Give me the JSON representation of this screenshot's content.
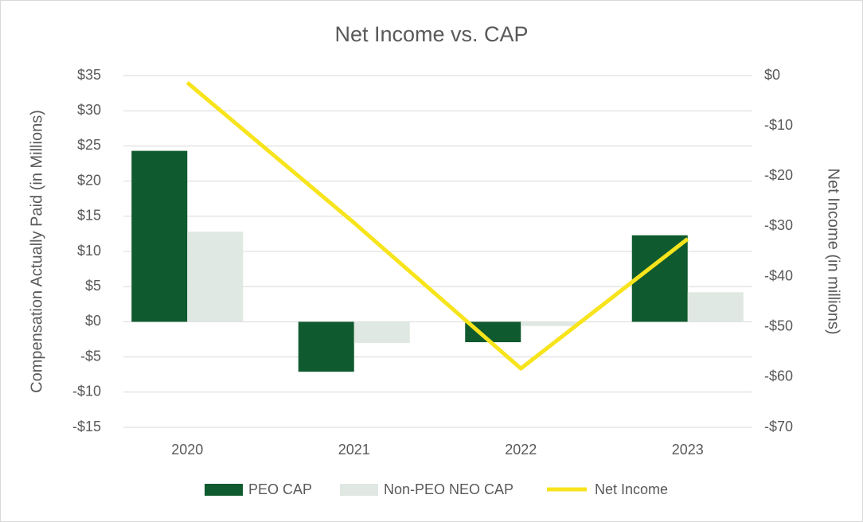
{
  "chart_data": {
    "type": "bar-line",
    "title": "Net Income vs. CAP",
    "y_label": "Compensation Actually Paid (in Millions)",
    "y2_label": "Net Income (in millions)",
    "categories": [
      "2020",
      "2021",
      "2022",
      "2023"
    ],
    "series": [
      {
        "name": "PEO CAP",
        "type": "bar",
        "color": "#0f5a2e",
        "values": [
          24.3,
          -7.1,
          -2.9,
          12.3
        ]
      },
      {
        "name": "Non-PEO NEO CAP",
        "type": "bar",
        "color": "#dfe8e2",
        "values": [
          12.8,
          -3.0,
          -0.6,
          4.2
        ]
      },
      {
        "name": "Net Income",
        "type": "line",
        "axis": "y2",
        "color": "#f7e41c",
        "values": [
          -1.4,
          -29.3,
          -58.3,
          -32.5
        ]
      }
    ],
    "ylim": [
      -15,
      35
    ],
    "yticks": [
      {
        "value": -15,
        "label": "-$15"
      },
      {
        "value": -10,
        "label": "-$10"
      },
      {
        "value": -5,
        "label": "-$5"
      },
      {
        "value": 0,
        "label": "$0"
      },
      {
        "value": 5,
        "label": "$5"
      },
      {
        "value": 10,
        "label": "$10"
      },
      {
        "value": 15,
        "label": "$15"
      },
      {
        "value": 20,
        "label": "$20"
      },
      {
        "value": 25,
        "label": "$25"
      },
      {
        "value": 30,
        "label": "$30"
      },
      {
        "value": 35,
        "label": "$35"
      }
    ],
    "y2lim": [
      -70,
      0
    ],
    "y2ticks": [
      {
        "value": -70,
        "label": "-$70"
      },
      {
        "value": -60,
        "label": "-$60"
      },
      {
        "value": -50,
        "label": "-$50"
      },
      {
        "value": -40,
        "label": "-$40"
      },
      {
        "value": -30,
        "label": "-$30"
      },
      {
        "value": -20,
        "label": "-$20"
      },
      {
        "value": -10,
        "label": "-$10"
      },
      {
        "value": 0,
        "label": "$0"
      }
    ],
    "grid": true,
    "legend": "bottom"
  }
}
